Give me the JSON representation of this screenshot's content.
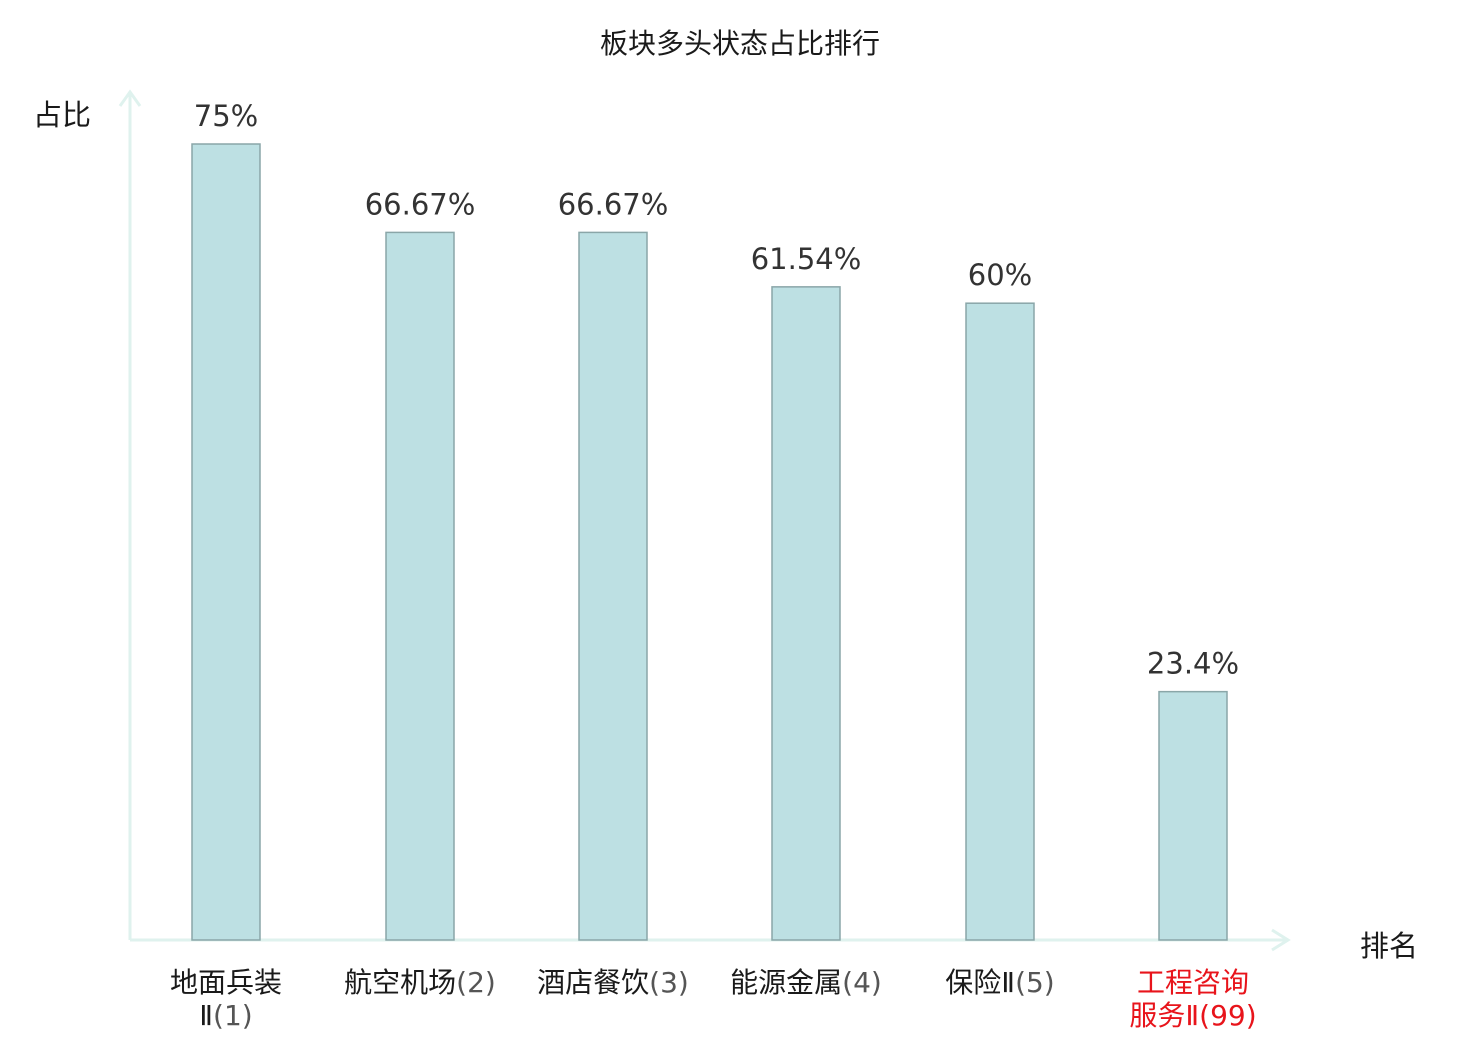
{
  "chart_data": {
    "type": "bar",
    "title": "板块多头状态占比排行",
    "ylabel": "占比",
    "xlabel": "排名",
    "ylim": [
      0,
      75
    ],
    "grid": false,
    "categories": [
      {
        "name": "地面兵装Ⅱ",
        "rank": "(1)",
        "label_lines": [
          "地面兵装",
          "Ⅱ(1)"
        ]
      },
      {
        "name": "航空机场",
        "rank": "(2)",
        "label_lines": [
          "航空机场(2)"
        ]
      },
      {
        "name": "酒店餐饮",
        "rank": "(3)",
        "label_lines": [
          "酒店餐饮(3)"
        ]
      },
      {
        "name": "能源金属",
        "rank": "(4)",
        "label_lines": [
          "能源金属(4)"
        ]
      },
      {
        "name": "保险Ⅱ",
        "rank": "(5)",
        "label_lines": [
          "保险Ⅱ(5)"
        ]
      },
      {
        "name": "工程咨询服务Ⅱ",
        "rank": "(99)",
        "label_lines": [
          "工程咨询",
          "服务Ⅱ(99)"
        ],
        "highlight": true
      }
    ],
    "values": [
      75,
      66.67,
      66.67,
      61.54,
      60,
      23.4
    ],
    "value_labels": [
      "75%",
      "66.67%",
      "66.67%",
      "61.54%",
      "60%",
      "23.4%"
    ],
    "colors": {
      "bar_fill": "#bde0e3",
      "bar_stroke": "#8aa6a8",
      "axis": "#dff2ee",
      "highlight_text": "#e8141b",
      "value_text": "#333333"
    }
  }
}
